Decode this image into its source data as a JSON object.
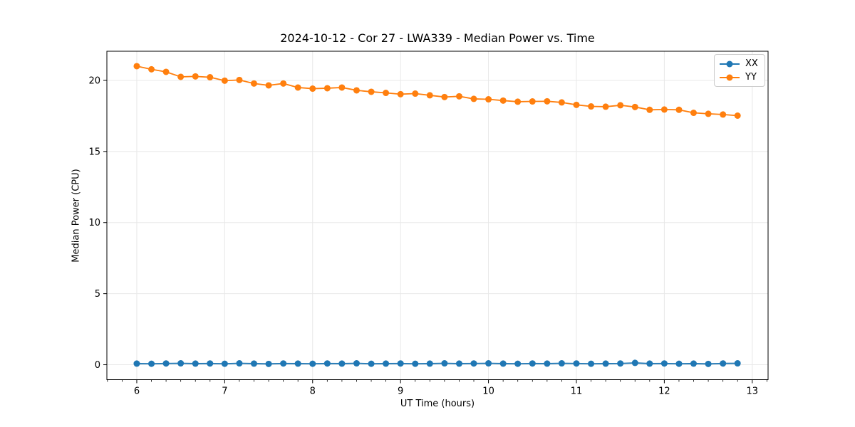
{
  "chart_data": {
    "type": "line",
    "title": "2024-10-12 - Cor 27 - LWA339 - Median Power vs. Time",
    "xlabel": "UT Time (hours)",
    "ylabel": "Median Power (CPU)",
    "xlim": [
      5.66,
      13.18
    ],
    "ylim": [
      -1.05,
      22.05
    ],
    "xticks": [
      6,
      7,
      8,
      9,
      10,
      11,
      12,
      13
    ],
    "x_minor_step": 0.16667,
    "yticks": [
      0,
      5,
      10,
      15,
      20
    ],
    "grid": true,
    "grid_color": "#e8e8e8",
    "spine_color": "#000000",
    "legend_position": "upper right",
    "marker": "circle",
    "x": [
      6.0,
      6.167,
      6.333,
      6.5,
      6.667,
      6.833,
      7.0,
      7.167,
      7.333,
      7.5,
      7.667,
      7.833,
      8.0,
      8.167,
      8.333,
      8.5,
      8.667,
      8.833,
      9.0,
      9.167,
      9.333,
      9.5,
      9.667,
      9.833,
      10.0,
      10.167,
      10.333,
      10.5,
      10.667,
      10.833,
      11.0,
      11.167,
      11.333,
      11.5,
      11.667,
      11.833,
      12.0,
      12.167,
      12.333,
      12.5,
      12.667,
      12.833
    ],
    "series": [
      {
        "name": "XX",
        "color": "#1f77b4",
        "values": [
          0.08,
          0.07,
          0.09,
          0.1,
          0.08,
          0.09,
          0.07,
          0.1,
          0.08,
          0.06,
          0.09,
          0.08,
          0.07,
          0.09,
          0.08,
          0.1,
          0.07,
          0.08,
          0.09,
          0.07,
          0.08,
          0.1,
          0.08,
          0.09,
          0.1,
          0.08,
          0.07,
          0.09,
          0.08,
          0.1,
          0.09,
          0.07,
          0.08,
          0.09,
          0.13,
          0.08,
          0.09,
          0.07,
          0.08,
          0.06,
          0.09,
          0.1
        ]
      },
      {
        "name": "YY",
        "color": "#ff7f0e",
        "values": [
          21.0,
          20.78,
          20.6,
          20.25,
          20.28,
          20.22,
          19.98,
          20.03,
          19.78,
          19.65,
          19.78,
          19.5,
          19.42,
          19.45,
          19.5,
          19.3,
          19.2,
          19.12,
          19.03,
          19.07,
          18.95,
          18.83,
          18.88,
          18.7,
          18.67,
          18.58,
          18.5,
          18.52,
          18.53,
          18.45,
          18.28,
          18.17,
          18.15,
          18.25,
          18.13,
          17.93,
          17.95,
          17.93,
          17.72,
          17.65,
          17.6,
          17.52
        ]
      }
    ]
  }
}
